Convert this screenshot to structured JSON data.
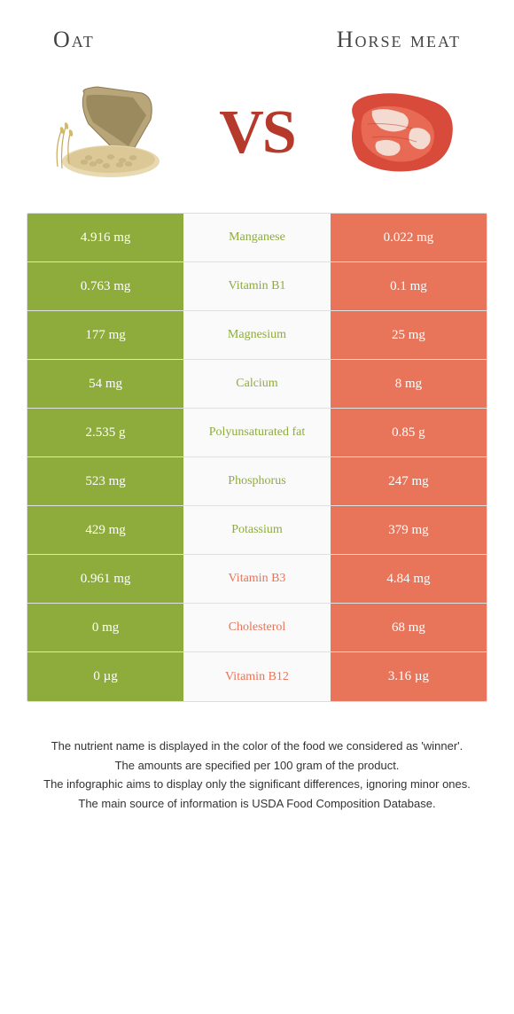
{
  "colors": {
    "left_food": "#8eac3c",
    "right_food": "#e8745a",
    "left_bar_border": "#ffffff",
    "nutrient_bg": "#fafafa",
    "vs": "#b63a2c"
  },
  "header": {
    "left_title": "Oat",
    "right_title": "Horse meat",
    "vs_label": "VS"
  },
  "rows": [
    {
      "nutrient": "Manganese",
      "left": "4.916 mg",
      "right": "0.022 mg",
      "winner": "left"
    },
    {
      "nutrient": "Vitamin B1",
      "left": "0.763 mg",
      "right": "0.1 mg",
      "winner": "left"
    },
    {
      "nutrient": "Magnesium",
      "left": "177 mg",
      "right": "25 mg",
      "winner": "left"
    },
    {
      "nutrient": "Calcium",
      "left": "54 mg",
      "right": "8 mg",
      "winner": "left"
    },
    {
      "nutrient": "Polyunsaturated fat",
      "left": "2.535 g",
      "right": "0.85 g",
      "winner": "left"
    },
    {
      "nutrient": "Phosphorus",
      "left": "523 mg",
      "right": "247 mg",
      "winner": "left"
    },
    {
      "nutrient": "Potassium",
      "left": "429 mg",
      "right": "379 mg",
      "winner": "left"
    },
    {
      "nutrient": "Vitamin B3",
      "left": "0.961 mg",
      "right": "4.84 mg",
      "winner": "right"
    },
    {
      "nutrient": "Cholesterol",
      "left": "0 mg",
      "right": "68 mg",
      "winner": "right"
    },
    {
      "nutrient": "Vitamin B12",
      "left": "0 µg",
      "right": "3.16 µg",
      "winner": "right"
    }
  ],
  "footnotes": [
    "The nutrient name is displayed in the color of the food we considered as 'winner'.",
    "The amounts are specified per 100 gram of the product.",
    "The infographic aims to display only the significant differences, ignoring minor ones.",
    "The main source of information is USDA Food Composition Database."
  ]
}
